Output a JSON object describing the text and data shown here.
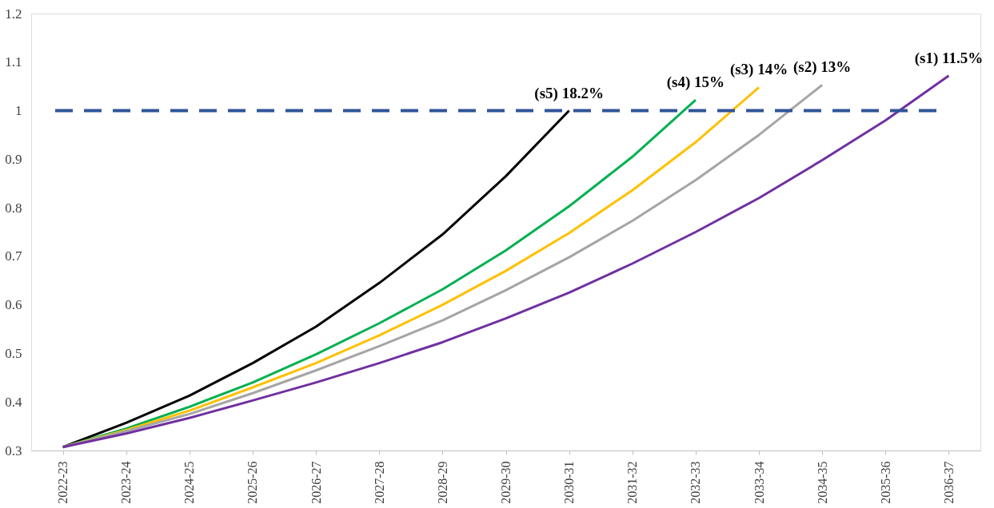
{
  "chart_data": {
    "type": "line",
    "categories": [
      "2022-23",
      "2023-24",
      "2024-25",
      "2025-26",
      "2026-27",
      "2027-28",
      "2028-29",
      "2029-30",
      "2030-31",
      "2031-32",
      "2032-33",
      "2033-34",
      "2034-35",
      "2035-36",
      "2036-37"
    ],
    "series": [
      {
        "name": "(s5) 18.2%",
        "color": "#000000",
        "values": [
          0.307,
          0.357,
          0.413,
          0.48,
          0.555,
          0.645,
          0.745,
          0.865,
          1.0,
          null,
          null,
          null,
          null,
          null,
          null
        ]
      },
      {
        "name": "(s4) 15%",
        "color": "#00b050",
        "values": [
          0.307,
          0.345,
          0.39,
          0.44,
          0.498,
          0.562,
          0.632,
          0.712,
          0.803,
          0.905,
          1.022,
          null,
          null,
          null,
          null
        ]
      },
      {
        "name": "(s3) 14%",
        "color": "#ffc000",
        "values": [
          0.307,
          0.342,
          0.382,
          0.43,
          0.48,
          0.537,
          0.6,
          0.67,
          0.748,
          0.836,
          0.935,
          1.048,
          null,
          null,
          null
        ]
      },
      {
        "name": "(s2) 13%",
        "color": "#a5a5a5",
        "values": [
          0.307,
          0.34,
          0.375,
          0.418,
          0.465,
          0.515,
          0.568,
          0.63,
          0.698,
          0.773,
          0.857,
          0.95,
          1.053,
          null,
          null
        ]
      },
      {
        "name": "(s1) 11.5%",
        "color": "#7030a0",
        "values": [
          0.307,
          0.335,
          0.367,
          0.403,
          0.44,
          0.48,
          0.523,
          0.572,
          0.625,
          0.685,
          0.75,
          0.82,
          0.898,
          0.98,
          1.072
        ]
      }
    ],
    "ylim": [
      0.3,
      1.2
    ],
    "yticks": [
      0.3,
      0.4,
      0.5,
      0.6,
      0.7,
      0.8,
      0.9,
      1,
      1.1,
      1.2
    ],
    "ref_lines": [
      {
        "axis": "y",
        "value": 1,
        "color": "#2f5597",
        "line_style": "dashed"
      }
    ],
    "grid": false,
    "legend": false,
    "marker": "none",
    "line_style": "solid"
  }
}
